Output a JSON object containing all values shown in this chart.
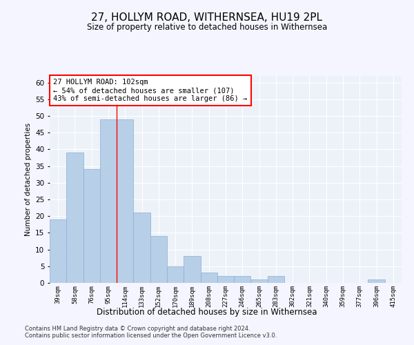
{
  "title": "27, HOLLYM ROAD, WITHERNSEA, HU19 2PL",
  "subtitle": "Size of property relative to detached houses in Withernsea",
  "xlabel": "Distribution of detached houses by size in Withernsea",
  "ylabel": "Number of detached properties",
  "categories": [
    "39sqm",
    "58sqm",
    "76sqm",
    "95sqm",
    "114sqm",
    "133sqm",
    "152sqm",
    "170sqm",
    "189sqm",
    "208sqm",
    "227sqm",
    "246sqm",
    "265sqm",
    "283sqm",
    "302sqm",
    "321sqm",
    "340sqm",
    "359sqm",
    "377sqm",
    "396sqm",
    "415sqm"
  ],
  "values": [
    19,
    39,
    34,
    49,
    49,
    21,
    14,
    5,
    8,
    3,
    2,
    2,
    1,
    2,
    0,
    0,
    0,
    0,
    0,
    1,
    0
  ],
  "bar_color": "#b8cfe8",
  "bar_edge_color": "#8aafd4",
  "background_color": "#edf2f9",
  "grid_color": "#ffffff",
  "red_line_x": 3.5,
  "annotation_text": "27 HOLLYM ROAD: 102sqm\n← 54% of detached houses are smaller (107)\n43% of semi-detached houses are larger (86) →",
  "annotation_box_color": "#ffffff",
  "annotation_box_edgecolor": "red",
  "ylim": [
    0,
    62
  ],
  "yticks": [
    0,
    5,
    10,
    15,
    20,
    25,
    30,
    35,
    40,
    45,
    50,
    55,
    60
  ],
  "footer1": "Contains HM Land Registry data © Crown copyright and database right 2024.",
  "footer2": "Contains public sector information licensed under the Open Government Licence v3.0.",
  "fig_facecolor": "#f5f5ff"
}
